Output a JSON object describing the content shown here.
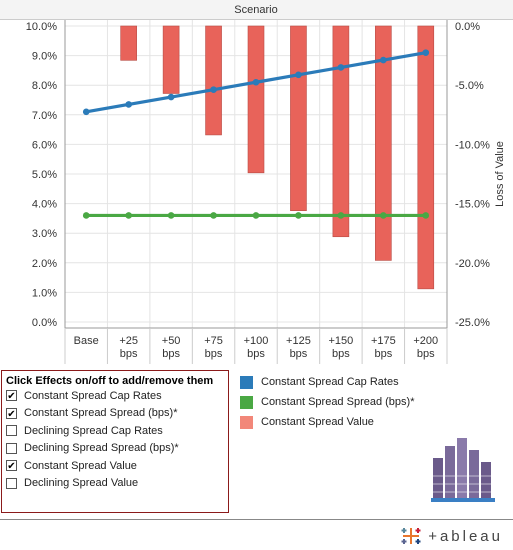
{
  "chart_data": {
    "type": "bar",
    "title": "Scenario",
    "categories": [
      "Base",
      "+25\nbps",
      "+50\nbps",
      "+75\nbps",
      "+100\nbps",
      "+125\nbps",
      "+150\nbps",
      "+175\nbps",
      "+200\nbps"
    ],
    "left_axis": {
      "ylim": [
        0.0,
        10.0
      ],
      "ticks": [
        "10.0%",
        "9.0%",
        "8.0%",
        "7.0%",
        "6.0%",
        "5.0%",
        "4.0%",
        "3.0%",
        "2.0%",
        "1.0%",
        "0.0%"
      ],
      "tick_values": [
        10,
        9,
        8,
        7,
        6,
        5,
        4,
        3,
        2,
        1,
        0
      ]
    },
    "right_axis": {
      "label": "Loss of Value",
      "ylim": [
        -25.0,
        0.0
      ],
      "ticks": [
        "0.0%",
        "-5.0%",
        "-10.0%",
        "-15.0%",
        "-20.0%",
        "-25.0%"
      ],
      "tick_values": [
        0,
        -5,
        -10,
        -15,
        -20,
        -25
      ]
    },
    "series": [
      {
        "name": "Constant Spread Value",
        "type": "bar",
        "axis": "right",
        "color": "#e8635a",
        "values": [
          0.0,
          -2.9,
          -5.7,
          -9.2,
          -12.4,
          -15.6,
          -17.8,
          -19.8,
          -22.2
        ]
      },
      {
        "name": "Constant Spread Cap Rates",
        "type": "line",
        "axis": "left",
        "color": "#2b7bb9",
        "values": [
          7.1,
          7.35,
          7.6,
          7.85,
          8.1,
          8.35,
          8.6,
          8.85,
          9.1
        ]
      },
      {
        "name": "Constant Spread Spread (bps)*",
        "type": "line",
        "axis": "left",
        "color": "#4aa844",
        "values": [
          3.6,
          3.6,
          3.6,
          3.6,
          3.6,
          3.6,
          3.6,
          3.6,
          3.6
        ]
      }
    ],
    "grid": true,
    "legend_position": "bottom"
  },
  "filter_panel": {
    "title": "Click Effects on/off to add/remove them",
    "items": [
      {
        "label": "Constant Spread Cap Rates",
        "checked": true
      },
      {
        "label": "Constant Spread Spread (bps)*",
        "checked": true
      },
      {
        "label": "Declining Spread Cap Rates",
        "checked": false
      },
      {
        "label": "Declining Spread Spread (bps)*",
        "checked": false
      },
      {
        "label": "Constant Spread Value",
        "checked": true
      },
      {
        "label": "Declining Spread Value",
        "checked": false
      }
    ],
    "check_mark": "✔"
  },
  "legend": {
    "items": [
      {
        "label": "Constant Spread Cap Rates",
        "color": "#2b7bb9"
      },
      {
        "label": "Constant Spread Spread (bps)*",
        "color": "#4aa844"
      },
      {
        "label": "Constant Spread Value",
        "color": "#f28779"
      }
    ]
  },
  "branding": {
    "wordmark": "+ableau",
    "logo_icon": "tableau-logo-icon",
    "building_icon": "building-icon"
  }
}
